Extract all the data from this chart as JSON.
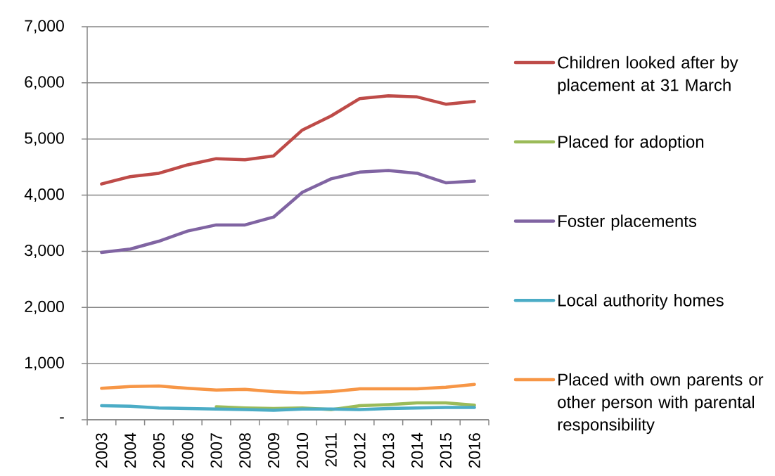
{
  "chart_data": {
    "type": "line",
    "categories": [
      "2003",
      "2004",
      "2005",
      "2006",
      "2007",
      "2008",
      "2009",
      "2010",
      "2011",
      "2012",
      "2013",
      "2014",
      "2015",
      "2016"
    ],
    "series": [
      {
        "name": "Children looked after by placement at 31 March",
        "color": "#be4b48",
        "values": [
          4200,
          4330,
          4390,
          4540,
          4650,
          4630,
          4700,
          5160,
          5410,
          5720,
          5770,
          5750,
          5620,
          5670
        ]
      },
      {
        "name": "Placed for adoption",
        "color": "#9bbb59",
        "values": [
          null,
          null,
          null,
          null,
          230,
          210,
          200,
          210,
          180,
          250,
          270,
          300,
          300,
          260
        ]
      },
      {
        "name": "Foster placements",
        "color": "#8064a2",
        "values": [
          2980,
          3040,
          3180,
          3360,
          3470,
          3470,
          3610,
          4050,
          4290,
          4410,
          4440,
          4390,
          4220,
          4250
        ]
      },
      {
        "name": "Local authority homes",
        "color": "#4bacc6",
        "values": [
          250,
          240,
          210,
          200,
          190,
          180,
          170,
          190,
          190,
          180,
          200,
          210,
          220,
          220
        ]
      },
      {
        "name": "Placed with own parents or other person with parental responsibility",
        "color": "#f79646",
        "values": [
          560,
          590,
          600,
          560,
          530,
          540,
          500,
          480,
          500,
          550,
          550,
          550,
          580,
          630
        ]
      }
    ],
    "ylim": [
      0,
      7000
    ],
    "yticks": [
      {
        "value": 0,
        "label": "-"
      },
      {
        "value": 1000,
        "label": "1,000"
      },
      {
        "value": 2000,
        "label": "2,000"
      },
      {
        "value": 3000,
        "label": "3,000"
      },
      {
        "value": 4000,
        "label": "4,000"
      },
      {
        "value": 5000,
        "label": "5,000"
      },
      {
        "value": 6000,
        "label": "6,000"
      },
      {
        "value": 7000,
        "label": "7,000"
      }
    ],
    "grid": "y",
    "legend": "right",
    "marker": "none",
    "line_style": "solid"
  }
}
